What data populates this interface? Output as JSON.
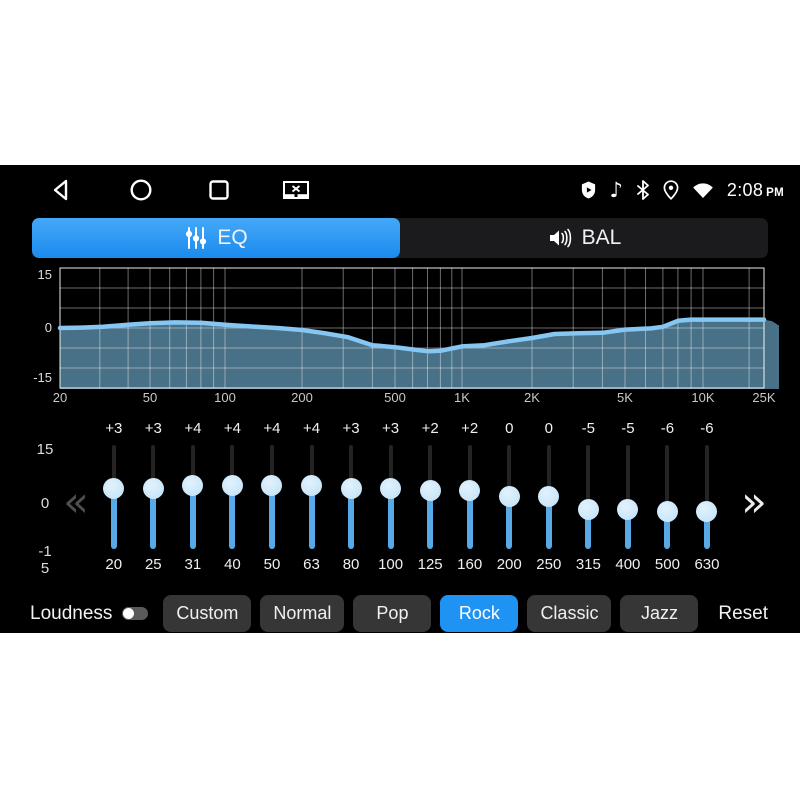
{
  "statusbar": {
    "time": "2:08",
    "period": "PM",
    "nav_icons": [
      "back",
      "home",
      "recents",
      "screen-off"
    ],
    "status_icons": [
      "shield",
      "music-note",
      "bluetooth",
      "location",
      "wifi"
    ]
  },
  "tabs": [
    {
      "id": "eq",
      "label": "EQ",
      "icon": "equalizer-icon",
      "active": true
    },
    {
      "id": "bal",
      "label": "BAL",
      "icon": "speaker-icon",
      "active": false
    }
  ],
  "graph": {
    "type": "area",
    "y_tick_labels": [
      "15",
      "0",
      "-15"
    ],
    "y_ticks": [
      15,
      0,
      -15
    ],
    "ylim": [
      -15,
      15
    ],
    "x_ticks": [
      {
        "f": 20,
        "label": "20"
      },
      {
        "f": 50,
        "label": "50"
      },
      {
        "f": 100,
        "label": "100"
      },
      {
        "f": 200,
        "label": "200"
      },
      {
        "f": 500,
        "label": "500"
      },
      {
        "f": 1000,
        "label": "1K"
      },
      {
        "f": 2000,
        "label": "2K"
      },
      {
        "f": 5000,
        "label": "5K"
      },
      {
        "f": 10000,
        "label": "10K"
      },
      {
        "f": 25000,
        "label": "25K"
      }
    ],
    "curve_db_by_freq": [
      [
        20,
        0
      ],
      [
        25,
        0.1
      ],
      [
        31,
        0.3
      ],
      [
        40,
        0.8
      ],
      [
        50,
        1.2
      ],
      [
        63,
        1.4
      ],
      [
        80,
        1.3
      ],
      [
        100,
        0.8
      ],
      [
        125,
        0.4
      ],
      [
        160,
        0
      ],
      [
        200,
        -0.5
      ],
      [
        250,
        -1.3
      ],
      [
        315,
        -2.3
      ],
      [
        400,
        -4.3
      ],
      [
        500,
        -4.8
      ],
      [
        630,
        -5.5
      ],
      [
        700,
        -5.8
      ],
      [
        800,
        -5.7
      ],
      [
        900,
        -5.1
      ],
      [
        1000,
        -4.6
      ],
      [
        1250,
        -4.3
      ],
      [
        1600,
        -3.3
      ],
      [
        2000,
        -2.5
      ],
      [
        2500,
        -1.5
      ],
      [
        3150,
        -1.3
      ],
      [
        4000,
        -1.2
      ],
      [
        5000,
        -0.4
      ],
      [
        6300,
        -0.1
      ],
      [
        7000,
        0.3
      ],
      [
        8000,
        1.8
      ],
      [
        9000,
        2.1
      ],
      [
        10000,
        2.1
      ],
      [
        25000,
        2.1
      ]
    ],
    "curve_color": "#85c6f2",
    "fill_color": "#74b4da",
    "grid_color": "#ffffff"
  },
  "equalizer": {
    "scale_top": "15",
    "scale_mid": "0",
    "scale_bottom": "-15",
    "prev_symbol": "«",
    "next_symbol": "»",
    "slider_color": "#58aae6",
    "bands": [
      {
        "freq": "20",
        "label": "+3",
        "db": 3
      },
      {
        "freq": "25",
        "label": "+3",
        "db": 3
      },
      {
        "freq": "31",
        "label": "+4",
        "db": 4
      },
      {
        "freq": "40",
        "label": "+4",
        "db": 4
      },
      {
        "freq": "50",
        "label": "+4",
        "db": 4
      },
      {
        "freq": "63",
        "label": "+4",
        "db": 4
      },
      {
        "freq": "80",
        "label": "+3",
        "db": 3
      },
      {
        "freq": "100",
        "label": "+3",
        "db": 3
      },
      {
        "freq": "125",
        "label": "+2",
        "db": 2
      },
      {
        "freq": "160",
        "label": "+2",
        "db": 2
      },
      {
        "freq": "200",
        "label": "0",
        "db": 0
      },
      {
        "freq": "250",
        "label": "0",
        "db": 0
      },
      {
        "freq": "315",
        "label": "-5",
        "db": -5
      },
      {
        "freq": "400",
        "label": "-5",
        "db": -5
      },
      {
        "freq": "500",
        "label": "-6",
        "db": -6
      },
      {
        "freq": "630",
        "label": "-6",
        "db": -6
      }
    ]
  },
  "footer": {
    "loudness_label": "Loudness",
    "loudness_on": false,
    "presets": [
      {
        "label": "Custom",
        "active": false
      },
      {
        "label": "Normal",
        "active": false
      },
      {
        "label": "Pop",
        "active": false
      },
      {
        "label": "Rock",
        "active": true
      },
      {
        "label": "Classic",
        "active": false
      },
      {
        "label": "Jazz",
        "active": false
      }
    ],
    "active_preset": "Rock",
    "reset_label": "Reset",
    "accent_color": "#1f93f4"
  }
}
